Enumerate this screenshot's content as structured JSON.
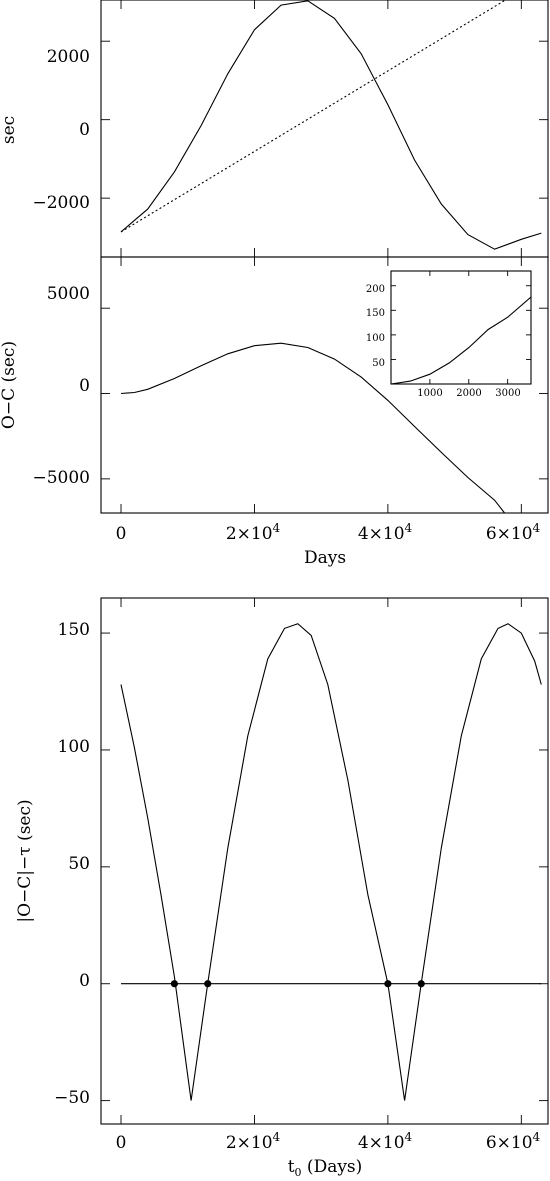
{
  "chart_data": [
    {
      "id": "panel_a",
      "type": "line",
      "xlabel": "",
      "ylabel": "sec",
      "xlim": [
        -3000,
        64000
      ],
      "ylim": [
        -3500,
        3050
      ],
      "y_tick_values": [
        -2000,
        0,
        2000
      ],
      "y_tick_labels": [
        "−2000",
        "0",
        "2000"
      ],
      "x_tick_values": [
        0,
        20000,
        40000,
        60000
      ],
      "grid": false,
      "series": [
        {
          "style": "solid",
          "x": [
            0,
            4000,
            8000,
            12000,
            16000,
            20000,
            24000,
            28000,
            32000,
            36000,
            40000,
            44000,
            48000,
            52000,
            56000,
            60000,
            63000
          ],
          "y": [
            -2860,
            -2280,
            -1330,
            -150,
            1170,
            2290,
            2920,
            3030,
            2580,
            1680,
            380,
            -1030,
            -2150,
            -2930,
            -3300,
            -3050,
            -2890
          ]
        },
        {
          "style": "dotted",
          "x": [
            0,
            63000
          ],
          "y": [
            -2860,
            3600
          ]
        }
      ]
    },
    {
      "id": "panel_b",
      "type": "line",
      "xlabel": "Days",
      "ylabel": "O−C (sec)",
      "xlim": [
        -3000,
        64000
      ],
      "ylim": [
        -7000,
        8000
      ],
      "y_tick_values": [
        -5000,
        0,
        5000
      ],
      "y_tick_labels": [
        "−5000",
        "0",
        "5000"
      ],
      "x_tick_values": [
        0,
        20000,
        40000,
        60000
      ],
      "x_tick_labels": [
        "0",
        "2×10",
        "4×10",
        "6×10"
      ],
      "x_tick_exponents": [
        "",
        "4",
        "4",
        "4"
      ],
      "grid": false,
      "series": [
        {
          "style": "solid",
          "x": [
            0,
            2000,
            4000,
            8000,
            12000,
            16000,
            20000,
            24000,
            28000,
            32000,
            36000,
            40000,
            44000,
            48000,
            52000,
            56000,
            57500
          ],
          "y": [
            0,
            60,
            250,
            880,
            1630,
            2330,
            2800,
            2950,
            2700,
            2020,
            960,
            -400,
            -1930,
            -3450,
            -4920,
            -6250,
            -7000
          ]
        }
      ],
      "inset": {
        "type": "line",
        "xlim": [
          0,
          3600
        ],
        "ylim": [
          0,
          230
        ],
        "x_tick_values": [
          1000,
          2000,
          3000
        ],
        "x_tick_labels": [
          "1000",
          "2000",
          "3000"
        ],
        "y_tick_values": [
          50,
          100,
          150,
          200
        ],
        "y_tick_labels": [
          "50",
          "100",
          "150",
          "200"
        ],
        "series": [
          {
            "style": "solid",
            "x": [
              0,
              500,
              1000,
              1500,
              2000,
              2500,
              3000,
              3600
            ],
            "y": [
              0,
              6,
              20,
              43,
              74,
              111,
              136,
              177
            ]
          }
        ]
      }
    },
    {
      "id": "panel_c",
      "type": "line",
      "xlabel": "t",
      "xlabel_subscript": "0",
      "xlabel_suffix": " (Days)",
      "ylabel": "|O−C|−τ (sec)",
      "xlim": [
        -3000,
        64000
      ],
      "ylim": [
        -60,
        165
      ],
      "y_tick_values": [
        -50,
        0,
        50,
        100,
        150
      ],
      "y_tick_labels": [
        "−50",
        "0",
        "50",
        "100",
        "150"
      ],
      "x_tick_values": [
        0,
        20000,
        40000,
        60000
      ],
      "x_tick_labels": [
        "0",
        "2×10",
        "4×10",
        "6×10"
      ],
      "x_tick_exponents": [
        "",
        "4",
        "4",
        "4"
      ],
      "grid": false,
      "series": [
        {
          "style": "solid",
          "x": [
            0,
            2000,
            4000,
            6000,
            8000,
            10500,
            13000,
            16000,
            19000,
            22000,
            24500,
            26500,
            28500,
            31000,
            34000,
            37000,
            40000,
            42500,
            45000,
            48000,
            51000,
            54000,
            56500,
            58000,
            60000,
            62000,
            63000
          ],
          "y": [
            128,
            101,
            71,
            38,
            3,
            -50,
            0,
            58,
            106,
            139,
            152,
            154,
            149,
            128,
            87,
            38,
            0,
            -50,
            0,
            58,
            106,
            139,
            152,
            154,
            150,
            138,
            128
          ]
        },
        {
          "style": "solid",
          "x": [
            0,
            63000
          ],
          "y": [
            0,
            0
          ]
        }
      ],
      "markers": {
        "x": [
          8000,
          13000,
          40000,
          45000
        ],
        "y": [
          0,
          0,
          0,
          0
        ]
      }
    }
  ]
}
